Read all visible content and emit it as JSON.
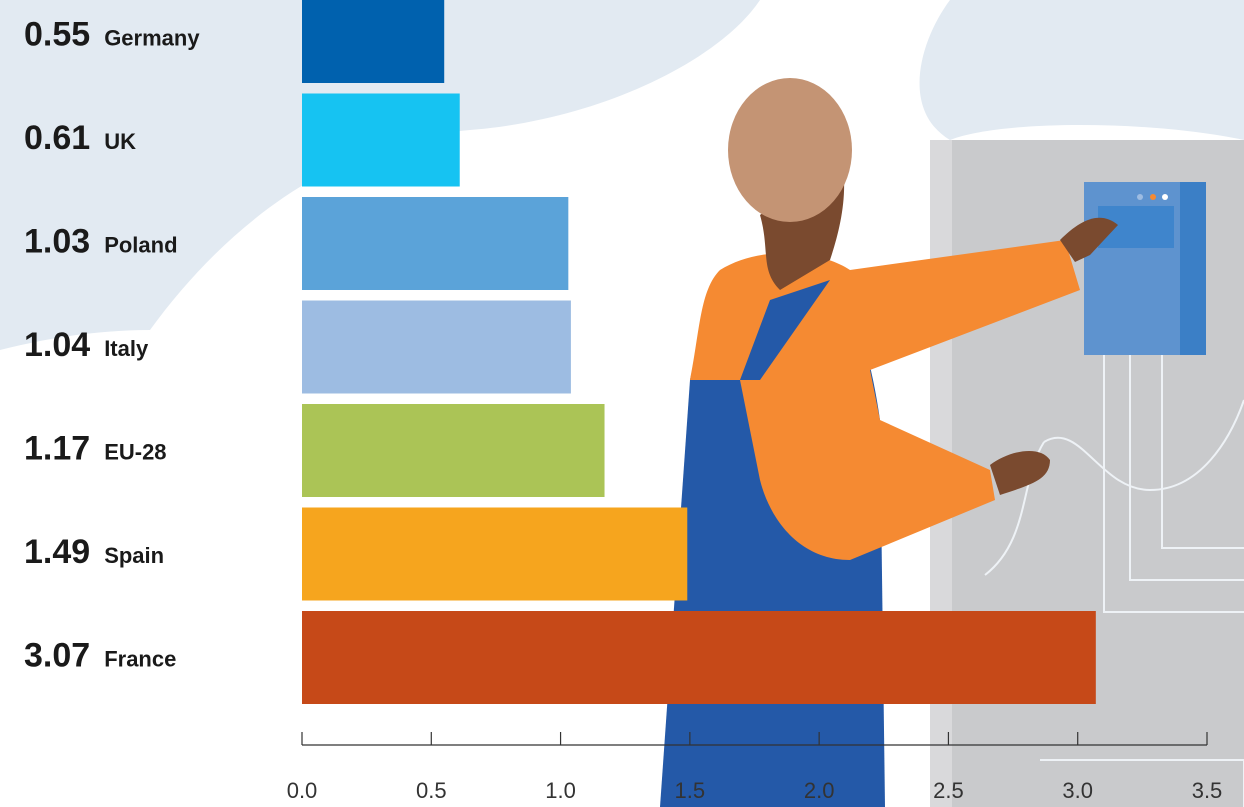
{
  "chart_data": {
    "type": "bar",
    "orientation": "horizontal",
    "categories": [
      "Germany",
      "UK",
      "Poland",
      "Italy",
      "EU-28",
      "Spain",
      "France"
    ],
    "values": [
      0.55,
      0.61,
      1.03,
      1.04,
      1.17,
      1.49,
      3.07
    ],
    "colors": [
      "#0061ae",
      "#16c3f2",
      "#5ba3d9",
      "#9dbce2",
      "#abc456",
      "#f6a51e",
      "#c64918"
    ],
    "xlim": [
      0,
      3.5
    ],
    "xticks": [
      {
        "value": 0,
        "label": "0.0"
      },
      0.5,
      {
        "value": 1,
        "label": "1.0"
      },
      1.5,
      {
        "value": 2,
        "label": "2.0"
      },
      2.5,
      {
        "value": 3,
        "label": "3.0"
      },
      3.5
    ]
  }
}
